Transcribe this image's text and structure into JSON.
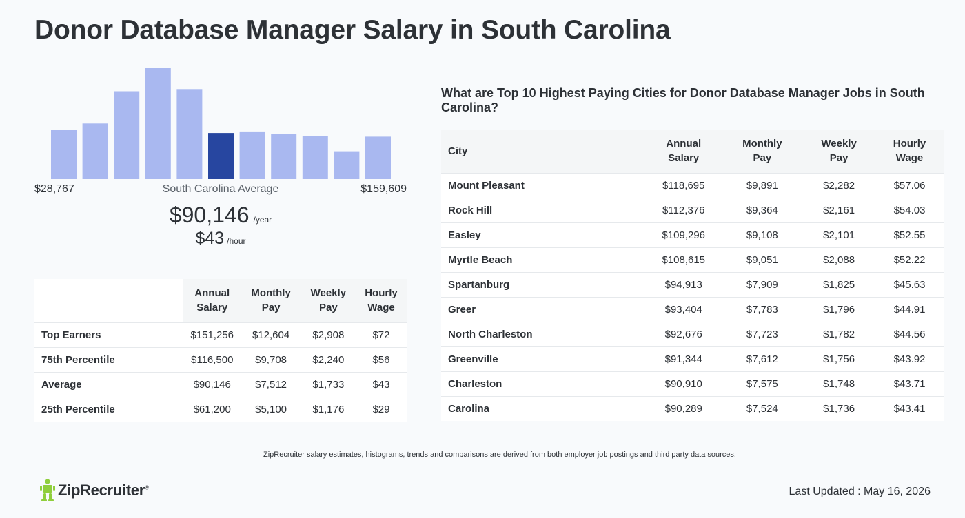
{
  "page": {
    "title": "Donor Database Manager Salary in South Carolina"
  },
  "histogram": {
    "bar_color": "#a9b8f0",
    "highlight_color": "#2746a0",
    "highlight_index": 5,
    "min_label": "$28,767",
    "max_label": "$159,609",
    "avg_label": "South Carolina Average"
  },
  "chart_data": {
    "type": "bar",
    "categories": [
      "1",
      "2",
      "3",
      "4",
      "5",
      "6",
      "7",
      "8",
      "9",
      "10",
      "11"
    ],
    "values": [
      67,
      76,
      120,
      152,
      123,
      63,
      65,
      62,
      59,
      38,
      58
    ],
    "ylim": [
      0,
      160
    ]
  },
  "average": {
    "yearly": "$90,146",
    "yearly_unit": "/year",
    "hourly": "$43",
    "hourly_unit": "/hour"
  },
  "percentile_table": {
    "headers": [
      [
        "Annual",
        "Salary"
      ],
      [
        "Monthly",
        "Pay"
      ],
      [
        "Weekly",
        "Pay"
      ],
      [
        "Hourly",
        "Wage"
      ]
    ],
    "rows": [
      {
        "label": "Top Earners",
        "annual": "$151,256",
        "monthly": "$12,604",
        "weekly": "$2,908",
        "hourly": "$72"
      },
      {
        "label": "75th Percentile",
        "annual": "$116,500",
        "monthly": "$9,708",
        "weekly": "$2,240",
        "hourly": "$56"
      },
      {
        "label": "Average",
        "annual": "$90,146",
        "monthly": "$7,512",
        "weekly": "$1,733",
        "hourly": "$43"
      },
      {
        "label": "25th Percentile",
        "annual": "$61,200",
        "monthly": "$5,100",
        "weekly": "$1,176",
        "hourly": "$29"
      }
    ]
  },
  "cities": {
    "heading": "What are Top 10 Highest Paying Cities for Donor Database Manager Jobs in South Carolina?",
    "headers": {
      "city": "City",
      "cols": [
        [
          "Annual",
          "Salary"
        ],
        [
          "Monthly",
          "Pay"
        ],
        [
          "Weekly",
          "Pay"
        ],
        [
          "Hourly",
          "Wage"
        ]
      ]
    },
    "rows": [
      {
        "city": "Mount Pleasant",
        "annual": "$118,695",
        "monthly": "$9,891",
        "weekly": "$2,282",
        "hourly": "$57.06"
      },
      {
        "city": "Rock Hill",
        "annual": "$112,376",
        "monthly": "$9,364",
        "weekly": "$2,161",
        "hourly": "$54.03"
      },
      {
        "city": "Easley",
        "annual": "$109,296",
        "monthly": "$9,108",
        "weekly": "$2,101",
        "hourly": "$52.55"
      },
      {
        "city": "Myrtle Beach",
        "annual": "$108,615",
        "monthly": "$9,051",
        "weekly": "$2,088",
        "hourly": "$52.22"
      },
      {
        "city": "Spartanburg",
        "annual": "$94,913",
        "monthly": "$7,909",
        "weekly": "$1,825",
        "hourly": "$45.63"
      },
      {
        "city": "Greer",
        "annual": "$93,404",
        "monthly": "$7,783",
        "weekly": "$1,796",
        "hourly": "$44.91"
      },
      {
        "city": "North Charleston",
        "annual": "$92,676",
        "monthly": "$7,723",
        "weekly": "$1,782",
        "hourly": "$44.56"
      },
      {
        "city": "Greenville",
        "annual": "$91,344",
        "monthly": "$7,612",
        "weekly": "$1,756",
        "hourly": "$43.92"
      },
      {
        "city": "Charleston",
        "annual": "$90,910",
        "monthly": "$7,575",
        "weekly": "$1,748",
        "hourly": "$43.71"
      },
      {
        "city": "Carolina",
        "annual": "$90,289",
        "monthly": "$7,524",
        "weekly": "$1,736",
        "hourly": "$43.41"
      }
    ]
  },
  "footer": {
    "note": "ZipRecruiter salary estimates, histograms, trends and comparisons are derived from both employer job postings and third party data sources.",
    "logo_text": "ZipRecruiter",
    "logo_mark": "®",
    "logo_color": "#8fce3c",
    "last_updated": "Last Updated : May 16, 2026"
  }
}
